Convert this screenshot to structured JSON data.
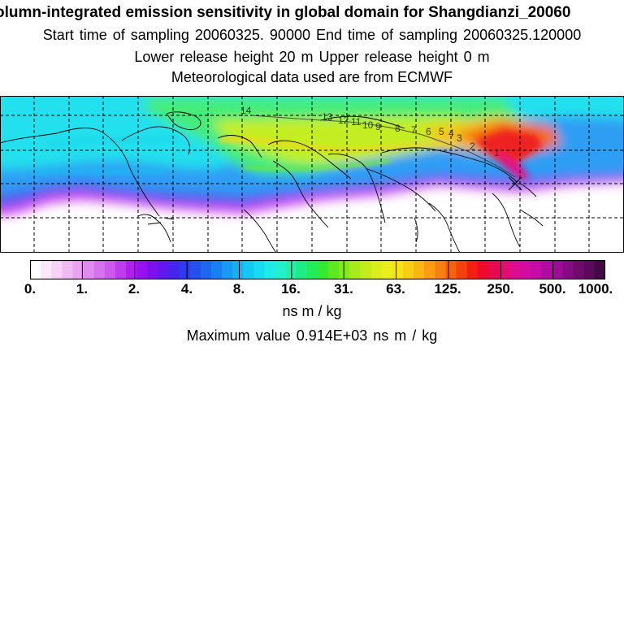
{
  "header": {
    "title": "olumn-integrated emission sensitivity in global domain for Shangdianzi_20060",
    "sampling_line": "Start time of sampling 20060325. 90000     End time of sampling 20060325.120000",
    "release_line": "Lower release height   20 m          Upper release height    0 m",
    "met_line": "Meteorological data used are from ECMWF"
  },
  "map": {
    "domain": "global",
    "receptor_marker": "x-marker",
    "trajectory_labels": [
      "1",
      "2",
      "3",
      "4",
      "5",
      "6",
      "7",
      "8",
      "9",
      "10",
      "11",
      "12",
      "13",
      "14"
    ],
    "colors": {
      "background_low": "#ffffff",
      "magenta": "#cc22ee",
      "blue": "#3a6cf4",
      "cyan": "#22ddf0",
      "green": "#55ee66",
      "yellow": "#ddee33",
      "orange": "#f6a020",
      "red": "#ee2222",
      "maximum": "#e0168c"
    }
  },
  "colorbar": {
    "tick_labels": [
      "0.",
      "1.",
      "2.",
      "4.",
      "8.",
      "16.",
      "31.",
      "63.",
      "125.",
      "250.",
      "500.",
      "1000."
    ],
    "colors": [
      "#ffffff",
      "#fbe9fb",
      "#f6d2f7",
      "#f0bbf4",
      "#eaa2f1",
      "#e18aef",
      "#d772ee",
      "#cc58ee",
      "#be3cee",
      "#ad20ee",
      "#9710ee",
      "#7c10ee",
      "#6018ee",
      "#4426ee",
      "#2f3aee",
      "#2450ee",
      "#1c68f0",
      "#1880f2",
      "#169af4",
      "#14b2f5",
      "#14c8f4",
      "#18dcf2",
      "#1eeae6",
      "#22efcc",
      "#20f0a8",
      "#1eee82",
      "#22ec5a",
      "#34ea30",
      "#5ee820",
      "#86e81c",
      "#a8ea1c",
      "#c4ec1c",
      "#daee1c",
      "#ecee1c",
      "#f6e21a",
      "#fbce16",
      "#fcb614",
      "#fb9c12",
      "#f88010",
      "#f6620e",
      "#f4420e",
      "#f22010",
      "#ee0a2a",
      "#e80a50",
      "#e20c72",
      "#dc0c8e",
      "#d20ca0",
      "#c40ca6",
      "#b10ca2",
      "#9c0c96",
      "#860c84",
      "#700c6e",
      "#5a0a58",
      "#440842"
    ],
    "units": "ns m / kg"
  },
  "footer": {
    "max_value": "Maximum value  0.914E+03 ns m / kg"
  }
}
